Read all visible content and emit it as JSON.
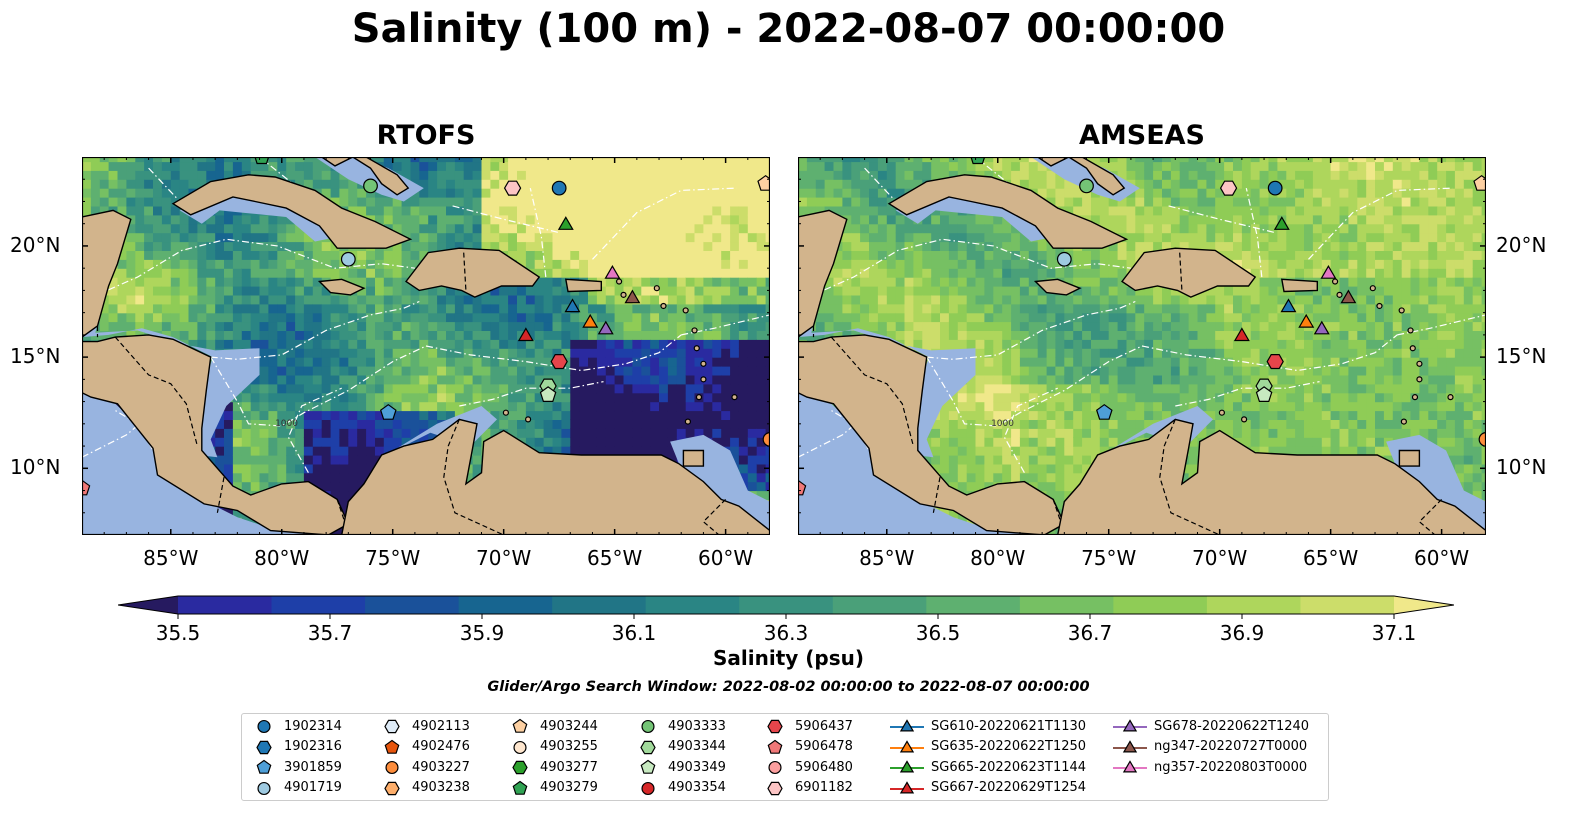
{
  "title": "Salinity (100 m) - 2022-08-07 00:00:00",
  "panels": [
    {
      "title": "RTOFS",
      "model": "rtofs"
    },
    {
      "title": "AMSEAS",
      "model": "amseas"
    }
  ],
  "map": {
    "extent": {
      "lon": [
        -89,
        -58
      ],
      "lat": [
        7,
        24
      ]
    },
    "lon_ticks": [
      "85°W",
      "80°W",
      "75°W",
      "70°W",
      "65°W",
      "60°W"
    ],
    "lon_tick_values": [
      -85,
      -80,
      -75,
      -70,
      -65,
      -60
    ],
    "lat_ticks": [
      "20°N",
      "15°N",
      "10°N"
    ],
    "lat_tick_values": [
      20,
      15,
      10
    ],
    "land_color": "#d2b48c",
    "shelf_color": "#98b4e0",
    "eez_line": "white dash-dot",
    "isobath_label": "1000"
  },
  "colorbar": {
    "label": "Salinity (psu)",
    "min": 35.4,
    "max": 37.2,
    "step": 0.1,
    "extend": "both",
    "ticks": [
      "35.5",
      "35.7",
      "35.9",
      "36.1",
      "36.3",
      "36.5",
      "36.7",
      "36.9",
      "37.1"
    ],
    "tick_values": [
      35.5,
      35.7,
      35.9,
      36.1,
      36.3,
      36.5,
      36.7,
      36.9,
      37.1
    ],
    "colors": [
      "#261a60",
      "#2a2aa0",
      "#1e3fa8",
      "#1a519a",
      "#176590",
      "#217586",
      "#2a8584",
      "#39927f",
      "#4aa079",
      "#5eb070",
      "#76c063",
      "#8fcc56",
      "#aed65c",
      "#ccdd6a",
      "#f0e88a"
    ]
  },
  "search_window": "Glider/Argo Search Window: 2022-08-02 00:00:00 to 2022-08-07 00:00:00",
  "platforms": [
    {
      "name": "1902314",
      "marker": "circle",
      "color": "#1f77b4",
      "lon": -67.5,
      "lat": 22.6
    },
    {
      "name": "1902316",
      "marker": "hexagon",
      "color": "#1f77b4",
      "lon": null,
      "lat": null
    },
    {
      "name": "3901859",
      "marker": "pentagon",
      "color": "#4e9fd8",
      "lon": -75.2,
      "lat": 12.5
    },
    {
      "name": "4901719",
      "marker": "circle",
      "color": "#9ecae1",
      "lon": -77.0,
      "lat": 19.4
    },
    {
      "name": "4902113",
      "marker": "hexagon",
      "color": "#deebf7",
      "lon": null,
      "lat": null
    },
    {
      "name": "4902476",
      "marker": "pentagon",
      "color": "#e6550d",
      "lon": null,
      "lat": null
    },
    {
      "name": "4903227",
      "marker": "circle",
      "color": "#fd8d3c",
      "lon": -58.0,
      "lat": 11.3
    },
    {
      "name": "4903238",
      "marker": "hexagon",
      "color": "#fdae6b",
      "lon": null,
      "lat": null
    },
    {
      "name": "4903244",
      "marker": "pentagon",
      "color": "#fdd0a2",
      "lon": -58.2,
      "lat": 22.8
    },
    {
      "name": "4903255",
      "marker": "circle",
      "color": "#fee6ce",
      "lon": null,
      "lat": null
    },
    {
      "name": "4903277",
      "marker": "hexagon",
      "color": "#2ca02c",
      "lon": null,
      "lat": null
    },
    {
      "name": "4903279",
      "marker": "pentagon",
      "color": "#31a354",
      "lon": -80.9,
      "lat": 24.0
    },
    {
      "name": "4903333",
      "marker": "circle",
      "color": "#74c476",
      "lon": -76.0,
      "lat": 22.7
    },
    {
      "name": "4903344",
      "marker": "hexagon",
      "color": "#a1d99b",
      "lon": -68.0,
      "lat": 13.7
    },
    {
      "name": "4903349",
      "marker": "pentagon",
      "color": "#c7e9c0",
      "lon": -68.0,
      "lat": 13.3
    },
    {
      "name": "4903354",
      "marker": "circle",
      "color": "#d62728",
      "lon": null,
      "lat": null
    },
    {
      "name": "5906437",
      "marker": "hexagon",
      "color": "#e6454b",
      "lon": -67.5,
      "lat": 14.8
    },
    {
      "name": "5906478",
      "marker": "pentagon",
      "color": "#f07878",
      "lon": -89.0,
      "lat": 9.1
    },
    {
      "name": "5906480",
      "marker": "circle",
      "color": "#fc9f9f",
      "lon": null,
      "lat": null
    },
    {
      "name": "6901182",
      "marker": "hexagon",
      "color": "#fcc5c5",
      "lon": -69.6,
      "lat": 22.6
    },
    {
      "name": "SG610-20220621T1130",
      "marker": "triangle",
      "color": "#1f77b4",
      "line": true,
      "lon": -66.9,
      "lat": 17.3
    },
    {
      "name": "SG635-20220622T1250",
      "marker": "triangle",
      "color": "#ff7f0e",
      "line": true,
      "lon": -66.1,
      "lat": 16.6
    },
    {
      "name": "SG665-20220623T1144",
      "marker": "triangle",
      "color": "#2ca02c",
      "line": true,
      "lon": -67.2,
      "lat": 21.0
    },
    {
      "name": "SG667-20220629T1254",
      "marker": "triangle",
      "color": "#d62728",
      "line": true,
      "lon": -69.0,
      "lat": 16.0
    },
    {
      "name": "SG678-20220622T1240",
      "marker": "triangle",
      "color": "#9467bd",
      "line": true,
      "lon": -65.4,
      "lat": 16.3
    },
    {
      "name": "ng347-20220727T0000",
      "marker": "triangle",
      "color": "#8c564b",
      "line": true,
      "lon": -64.2,
      "lat": 17.7
    },
    {
      "name": "ng357-20220803T0000",
      "marker": "triangle",
      "color": "#e377c2",
      "line": true,
      "lon": -65.1,
      "lat": 18.8
    }
  ]
}
